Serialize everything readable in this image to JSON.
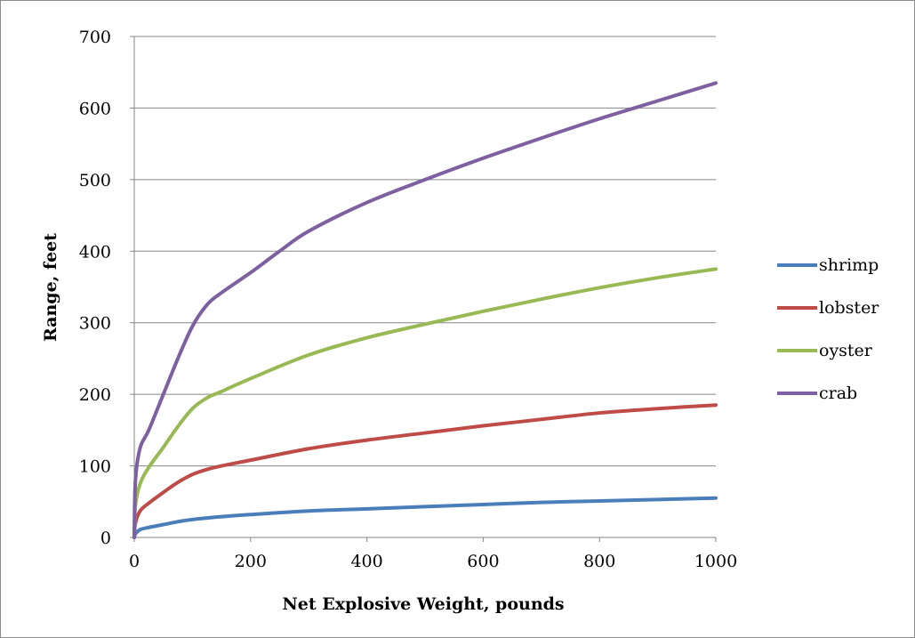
{
  "chart_data": {
    "type": "line",
    "title": "",
    "xlabel": "Net Explosive Weight, pounds",
    "ylabel": "Range, feet",
    "xlim": [
      0,
      1000
    ],
    "ylim": [
      0,
      700
    ],
    "x_ticks": [
      0,
      200,
      400,
      600,
      800,
      1000
    ],
    "y_ticks": [
      0,
      100,
      200,
      300,
      400,
      500,
      600,
      700
    ],
    "grid": "horizontal",
    "legend_position": "right",
    "series": [
      {
        "name": "shrimp",
        "color": "#4a7ebb",
        "points": [
          [
            0,
            0
          ],
          [
            2,
            5
          ],
          [
            10,
            11
          ],
          [
            25,
            14
          ],
          [
            50,
            18
          ],
          [
            75,
            22
          ],
          [
            100,
            25
          ],
          [
            150,
            29
          ],
          [
            200,
            32
          ],
          [
            300,
            37
          ],
          [
            400,
            40
          ],
          [
            500,
            43
          ],
          [
            600,
            46
          ],
          [
            700,
            49
          ],
          [
            800,
            51
          ],
          [
            900,
            53
          ],
          [
            1000,
            55
          ]
        ]
      },
      {
        "name": "lobster",
        "color": "#be4b48",
        "points": [
          [
            0,
            0
          ],
          [
            2,
            20
          ],
          [
            10,
            37
          ],
          [
            25,
            48
          ],
          [
            50,
            63
          ],
          [
            75,
            77
          ],
          [
            100,
            88
          ],
          [
            125,
            95
          ],
          [
            150,
            100
          ],
          [
            200,
            108
          ],
          [
            300,
            124
          ],
          [
            400,
            136
          ],
          [
            500,
            146
          ],
          [
            600,
            156
          ],
          [
            700,
            165
          ],
          [
            800,
            174
          ],
          [
            900,
            180
          ],
          [
            1000,
            185
          ]
        ]
      },
      {
        "name": "oyster",
        "color": "#98b954",
        "points": [
          [
            0,
            0
          ],
          [
            2,
            45
          ],
          [
            10,
            75
          ],
          [
            25,
            98
          ],
          [
            50,
            126
          ],
          [
            75,
            155
          ],
          [
            100,
            180
          ],
          [
            125,
            195
          ],
          [
            150,
            204
          ],
          [
            200,
            222
          ],
          [
            300,
            255
          ],
          [
            400,
            279
          ],
          [
            500,
            298
          ],
          [
            600,
            316
          ],
          [
            700,
            333
          ],
          [
            800,
            349
          ],
          [
            900,
            363
          ],
          [
            1000,
            375
          ]
        ]
      },
      {
        "name": "crab",
        "color": "#7d60a0",
        "points": [
          [
            0,
            0
          ],
          [
            2,
            80
          ],
          [
            10,
            125
          ],
          [
            25,
            150
          ],
          [
            50,
            200
          ],
          [
            75,
            250
          ],
          [
            100,
            295
          ],
          [
            125,
            325
          ],
          [
            150,
            342
          ],
          [
            200,
            370
          ],
          [
            250,
            400
          ],
          [
            300,
            428
          ],
          [
            400,
            468
          ],
          [
            500,
            500
          ],
          [
            600,
            530
          ],
          [
            700,
            558
          ],
          [
            800,
            585
          ],
          [
            900,
            610
          ],
          [
            1000,
            635
          ]
        ]
      }
    ]
  }
}
